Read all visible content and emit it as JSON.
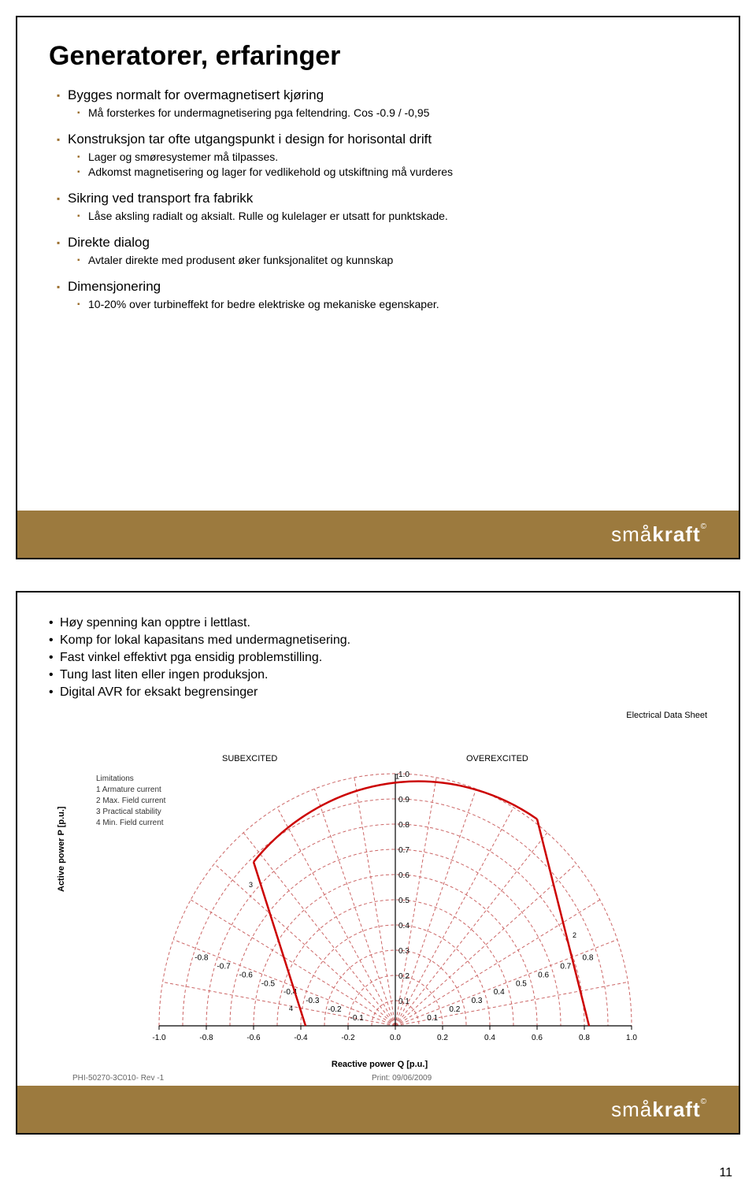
{
  "slide1": {
    "title": "Generatorer, erfaringer",
    "bullets": [
      {
        "level": 1,
        "text": "Bygges normalt for overmagnetisert kjøring"
      },
      {
        "level": 2,
        "text": "Må forsterkes for undermagnetisering pga feltendring. Cos -0.9 / -0,95"
      },
      {
        "level": 1,
        "text": "Konstruksjon tar ofte utgangspunkt i design for horisontal drift",
        "gap": true
      },
      {
        "level": 2,
        "text": "Lager og smøresystemer må tilpasses."
      },
      {
        "level": 2,
        "text": "Adkomst magnetisering og lager for vedlikehold og utskiftning må vurderes"
      },
      {
        "level": 1,
        "text": "Sikring ved transport fra fabrikk",
        "gap": true
      },
      {
        "level": 2,
        "text": "Låse aksling radialt og aksialt. Rulle og kulelager er utsatt for punktskade."
      },
      {
        "level": 1,
        "text": "Direkte dialog",
        "gap": true
      },
      {
        "level": 2,
        "text": " Avtaler direkte med produsent øker funksjonalitet og kunnskap"
      },
      {
        "level": 1,
        "text": "Dimensjonering",
        "gap": true
      },
      {
        "level": 2,
        "text": "10-20% over turbineffekt for bedre elektriske og mekaniske egenskaper."
      }
    ]
  },
  "slide2": {
    "bullets": [
      "Høy spenning kan opptre i lettlast.",
      "Komp for lokal kapasitans med undermagnetisering.",
      "Fast vinkel effektivt pga ensidig problemstilling.",
      "Tung last liten eller ingen produksjon.",
      "Digital AVR for eksakt begrensinger"
    ],
    "chart": {
      "header_right": "Electrical Data Sheet",
      "subexcited": "SUBEXCITED",
      "overexcited": "OVEREXCITED",
      "limitations_title": "Limitations",
      "limitations": [
        "1 Armature current",
        "2 Max. Field current",
        "3 Practical stability",
        "4 Min. Field current"
      ],
      "ylabel": "Active power P [p.u.]",
      "xlabel": "Reactive power Q [p.u.]",
      "footer_left": "PHI-50270-3C010- Rev -1",
      "footer_right": "Print: 09/06/2009",
      "xlim": [
        -1.0,
        1.0
      ],
      "ylim": [
        0.0,
        1.0
      ],
      "x_ticks": [
        -1.0,
        -0.8,
        -0.6,
        -0.4,
        -0.2,
        0.0,
        0.2,
        0.4,
        0.6,
        0.8,
        1.0
      ],
      "arcs": [
        0.1,
        0.2,
        0.3,
        0.4,
        0.5,
        0.6,
        0.7,
        0.8,
        0.9,
        1.0
      ],
      "left_y_ticks": [
        -0.1,
        -0.2,
        -0.3,
        -0.4,
        -0.5,
        -0.6,
        -0.7,
        -0.8
      ],
      "right_y_ticks": [
        0.1,
        0.2,
        0.3,
        0.4,
        0.5,
        0.6,
        0.7,
        0.8
      ],
      "grid_color": "#cc6666",
      "grid_dash": "4,3",
      "boundary_color": "#cc0000",
      "boundary_width": 2.5,
      "axis_color": "#000000",
      "tick_font_size": 10,
      "radial_count": 18,
      "capability_curve": {
        "left_segment": [
          [
            -0.38,
            0
          ],
          [
            -0.6,
            0.65
          ]
        ],
        "right_segment": [
          [
            0.82,
            0
          ],
          [
            0.6,
            0.82
          ]
        ],
        "arc_from": [
          -0.6,
          0.65
        ],
        "arc_to": [
          0.6,
          0.82
        ],
        "arc_radius_approx": 1.0
      }
    }
  },
  "logo_text": {
    "pre": "små",
    "bold": "kraft",
    "sup": "©"
  },
  "page_number": "11",
  "colors": {
    "footer_band": "#9c7a3e",
    "bullet_marker": "#9c6f2e",
    "text": "#000000",
    "background": "#ffffff"
  }
}
